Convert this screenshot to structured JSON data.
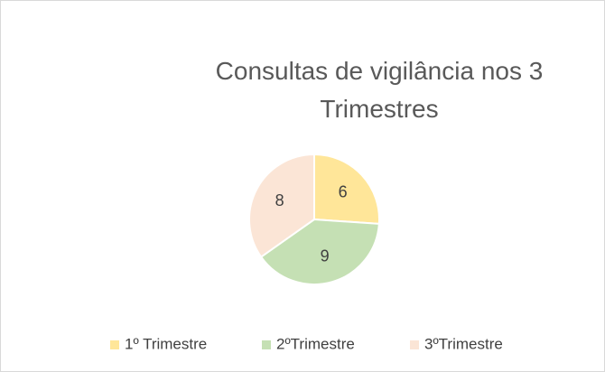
{
  "chart_data": {
    "type": "pie",
    "title": "Consultas de vigilância nos 3 Trimestres",
    "categories": [
      "1º Trimestre",
      "2ºTrimestre",
      "3ºTrimestre"
    ],
    "values": [
      6,
      9,
      8
    ],
    "colors": [
      "#ffe699",
      "#c5e0b4",
      "#fbe5d6"
    ],
    "legend": "bottom"
  }
}
